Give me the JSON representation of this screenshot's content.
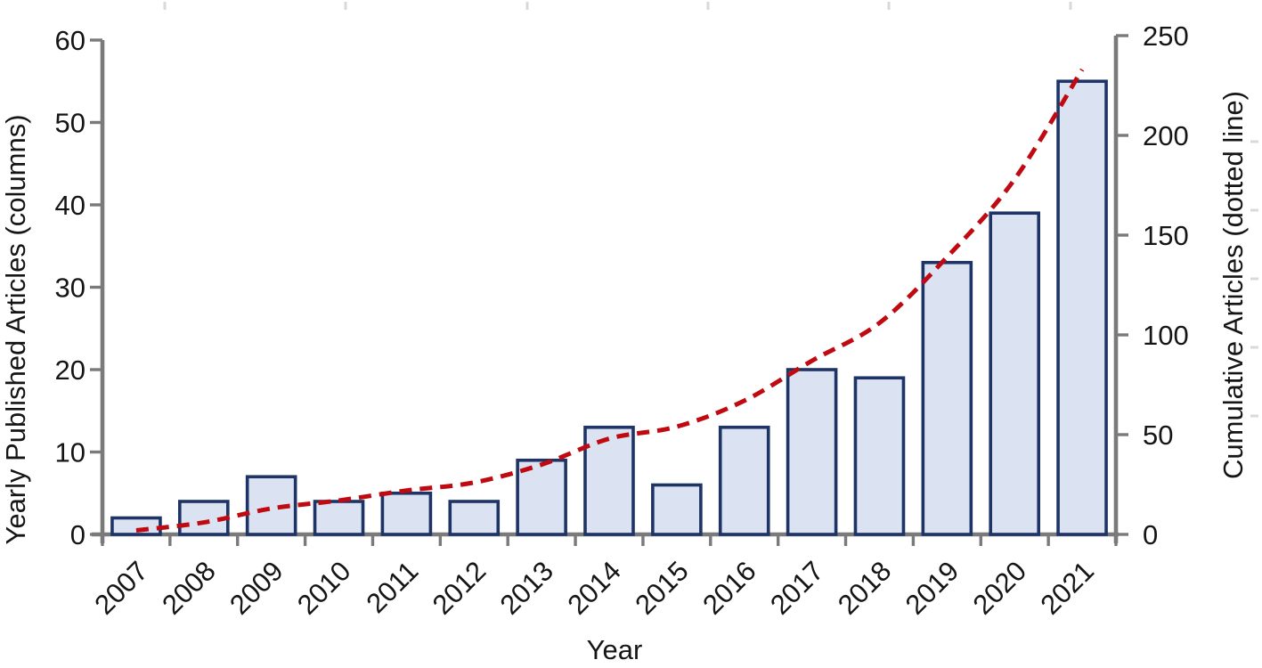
{
  "chart_data": {
    "type": "bar+line",
    "title": "",
    "xlabel": "Year",
    "categories": [
      "2007",
      "2008",
      "2009",
      "2010",
      "2011",
      "2012",
      "2013",
      "2014",
      "2015",
      "2016",
      "2017",
      "2018",
      "2019",
      "2020",
      "2021"
    ],
    "series": [
      {
        "name": "Yearly Published Articles",
        "type": "bar",
        "axis": "left",
        "values": [
          2,
          4,
          7,
          4,
          5,
          4,
          9,
          13,
          6,
          13,
          20,
          19,
          33,
          39,
          55
        ]
      },
      {
        "name": "Cumulative Articles",
        "type": "line",
        "line_style": "dashed",
        "smooth": true,
        "axis": "right",
        "values": [
          2,
          6,
          13,
          17,
          22,
          26,
          35,
          48,
          54,
          67,
          87,
          106,
          139,
          178,
          233
        ]
      }
    ],
    "left_axis": {
      "label": "Yearly Published Articles (columns)",
      "min": 0,
      "max": 60,
      "ticks": [
        0,
        10,
        20,
        30,
        40,
        50,
        60
      ]
    },
    "right_axis": {
      "label": "Cumulative Articles (dotted line)",
      "min": 0,
      "max": 250,
      "ticks": [
        0,
        50,
        100,
        150,
        200,
        250
      ]
    },
    "legend": "none",
    "grid": false,
    "colors": {
      "bar_fill": "#dbe3f2",
      "bar_border": "#1e3466",
      "line": "#c00a11",
      "axis": "#7a7a7a",
      "text": "#151515",
      "faint_tick": "#d9d9d9"
    }
  }
}
